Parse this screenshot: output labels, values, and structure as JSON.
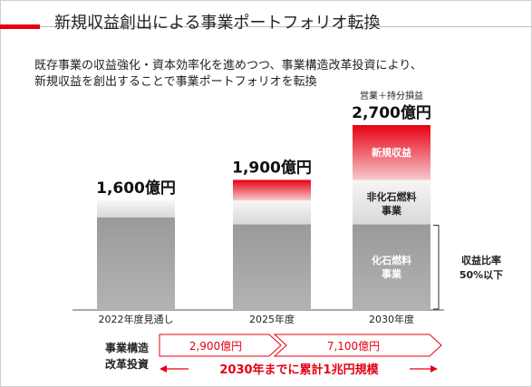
{
  "header": {
    "title": "新規収益創出による事業ポートフォリオ転換",
    "subtitle_line1": "既存事業の収益強化・資本効率化を進めつつ、事業構造改革投資により、",
    "subtitle_line2": "新規収益を創出することで事業ポートフォリオを転換"
  },
  "chart_data": {
    "type": "bar",
    "stacked": true,
    "categories": [
      "2022年度見通し",
      "2025年度",
      "2030年度"
    ],
    "totals": [
      "1,600億円",
      "1,900億円",
      "2,700億円"
    ],
    "series": [
      {
        "name": "化石燃料事業",
        "values": [
          1350,
          1250,
          1250
        ]
      },
      {
        "name": "非化石燃料事業",
        "values": [
          250,
          350,
          650
        ]
      },
      {
        "name": "新規収益",
        "values": [
          0,
          300,
          800
        ]
      }
    ],
    "ylim": [
      0,
      2700
    ],
    "segment_labels": {
      "new_revenue": "新規収益",
      "non_fossil": [
        "非化石燃料",
        "事業"
      ],
      "fossil": [
        "化石燃料",
        "事業"
      ]
    },
    "annotation_top": "営業＋持分損益",
    "ratio_note": [
      "収益比率",
      "50%以下"
    ],
    "colors": {
      "fossil": "#a3a3a3",
      "non_fossil": "#ececec",
      "new_revenue": "#e60012",
      "accent": "#e60012"
    }
  },
  "investment": {
    "label_line1": "事業構造",
    "label_line2": "改革投資",
    "phase1": "2,900億円",
    "phase2": "7,100億円",
    "cumulative": "2030年までに累計1兆円規模"
  }
}
